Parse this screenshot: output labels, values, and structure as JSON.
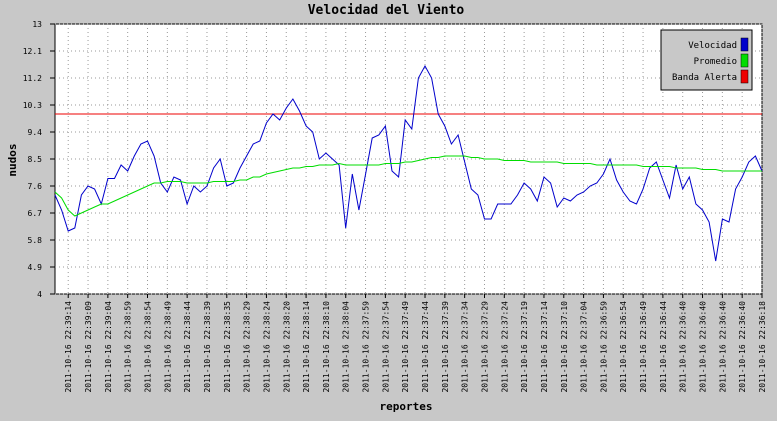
{
  "chart_data": {
    "type": "line",
    "title": "Velocidad del Viento",
    "y_label": "nudos",
    "x_label": "reportes",
    "categories": [
      null,
      null,
      "2011-10-16 22:39:14",
      null,
      null,
      "2011-10-16 22:39:09",
      null,
      null,
      "2011-10-16 22:39:04",
      null,
      null,
      "2011-10-16 22:38:59",
      null,
      null,
      "2011-10-16 22:38:54",
      null,
      null,
      "2011-10-16 22:38:49",
      null,
      null,
      "2011-10-16 22:38:44",
      null,
      null,
      "2011-10-16 22:38:39",
      null,
      null,
      "2011-10-16 22:38:35",
      null,
      null,
      "2011-10-16 22:38:29",
      null,
      null,
      "2011-10-16 22:38:24",
      null,
      null,
      "2011-10-16 22:38:20",
      null,
      null,
      "2011-10-16 22:38:14",
      null,
      null,
      "2011-10-16 22:38:10",
      null,
      null,
      "2011-10-16 22:38:04",
      null,
      null,
      "2011-10-16 22:37:59",
      null,
      null,
      "2011-10-16 22:37:54",
      null,
      null,
      "2011-10-16 22:37:49",
      null,
      null,
      "2011-10-16 22:37:44",
      null,
      null,
      "2011-10-16 22:37:39",
      null,
      null,
      "2011-10-16 22:37:34",
      null,
      null,
      "2011-10-16 22:37:29",
      null,
      null,
      "2011-10-16 22:37:24",
      null,
      null,
      "2011-10-16 22:37:19",
      null,
      null,
      "2011-10-16 22:37:14",
      null,
      null,
      "2011-10-16 22:37:10",
      null,
      null,
      "2011-10-16 22:37:04",
      null,
      null,
      "2011-10-16 22:36:59",
      null,
      null,
      "2011-10-16 22:36:54",
      null,
      null,
      "2011-10-16 22:36:49",
      null,
      null,
      "2011-10-16 22:36:44",
      null,
      null,
      "2011-10-16 22:36:40",
      null,
      null,
      "2011-10-16 22:36:40",
      null,
      null,
      "2011-10-16 22:36:40",
      null,
      null,
      "2011-10-16 22:36:40",
      null,
      null,
      "2011-10-16 22:36:18"
    ],
    "series": [
      {
        "name": "Velocidad",
        "color": "#0000cc",
        "values": [
          7.3,
          6.8,
          6.1,
          6.2,
          7.3,
          7.6,
          7.5,
          7.0,
          7.85,
          7.85,
          8.3,
          8.1,
          8.6,
          9.0,
          9.1,
          8.6,
          7.7,
          7.4,
          7.9,
          7.8,
          7.0,
          7.6,
          7.4,
          7.6,
          8.2,
          8.5,
          7.6,
          7.7,
          8.2,
          8.6,
          9.0,
          9.1,
          9.7,
          10.0,
          9.8,
          10.2,
          10.5,
          10.1,
          9.6,
          9.4,
          8.5,
          8.7,
          8.5,
          8.3,
          6.2,
          8.0,
          6.8,
          8.0,
          9.2,
          9.3,
          9.6,
          8.1,
          7.9,
          9.8,
          9.5,
          11.2,
          11.6,
          11.2,
          10.0,
          9.6,
          9.0,
          9.3,
          8.4,
          7.5,
          7.3,
          6.5,
          6.5,
          7.0,
          7.0,
          7.0,
          7.3,
          7.7,
          7.5,
          7.1,
          7.9,
          7.7,
          6.9,
          7.2,
          7.1,
          7.3,
          7.4,
          7.6,
          7.7,
          8.0,
          8.5,
          7.8,
          7.4,
          7.1,
          7.0,
          7.5,
          8.2,
          8.4,
          7.8,
          7.2,
          8.3,
          7.5,
          7.9,
          7.0,
          6.8,
          6.4,
          5.1,
          6.5,
          6.4,
          7.5,
          7.9,
          8.4,
          8.6,
          8.1
        ]
      },
      {
        "name": "Promedio",
        "color": "#00dd00",
        "values": [
          7.4,
          7.2,
          6.8,
          6.6,
          6.7,
          6.8,
          6.9,
          7.0,
          7.0,
          7.1,
          7.2,
          7.3,
          7.4,
          7.5,
          7.6,
          7.7,
          7.7,
          7.75,
          7.75,
          7.75,
          7.7,
          7.7,
          7.7,
          7.7,
          7.75,
          7.75,
          7.75,
          7.75,
          7.8,
          7.8,
          7.9,
          7.9,
          8.0,
          8.05,
          8.1,
          8.15,
          8.2,
          8.2,
          8.25,
          8.25,
          8.3,
          8.3,
          8.3,
          8.35,
          8.3,
          8.3,
          8.3,
          8.3,
          8.3,
          8.3,
          8.35,
          8.35,
          8.35,
          8.4,
          8.4,
          8.45,
          8.5,
          8.55,
          8.55,
          8.6,
          8.6,
          8.6,
          8.6,
          8.55,
          8.55,
          8.5,
          8.5,
          8.5,
          8.45,
          8.45,
          8.45,
          8.45,
          8.4,
          8.4,
          8.4,
          8.4,
          8.4,
          8.35,
          8.35,
          8.35,
          8.35,
          8.35,
          8.3,
          8.3,
          8.3,
          8.3,
          8.3,
          8.3,
          8.3,
          8.25,
          8.25,
          8.25,
          8.25,
          8.25,
          8.2,
          8.2,
          8.2,
          8.2,
          8.15,
          8.15,
          8.15,
          8.1,
          8.1,
          8.1,
          8.1,
          8.1,
          8.1,
          8.1
        ]
      }
    ],
    "threshold": {
      "name": "Banda Alerta",
      "color": "#ee0000",
      "value": 10
    },
    "ylim": [
      4,
      13
    ],
    "yticks": [
      4,
      4.9,
      5.8,
      6.7,
      7.6,
      8.5,
      9.4,
      10.3,
      11.2,
      12.1,
      13
    ],
    "grid": true,
    "legend": "top-right"
  }
}
